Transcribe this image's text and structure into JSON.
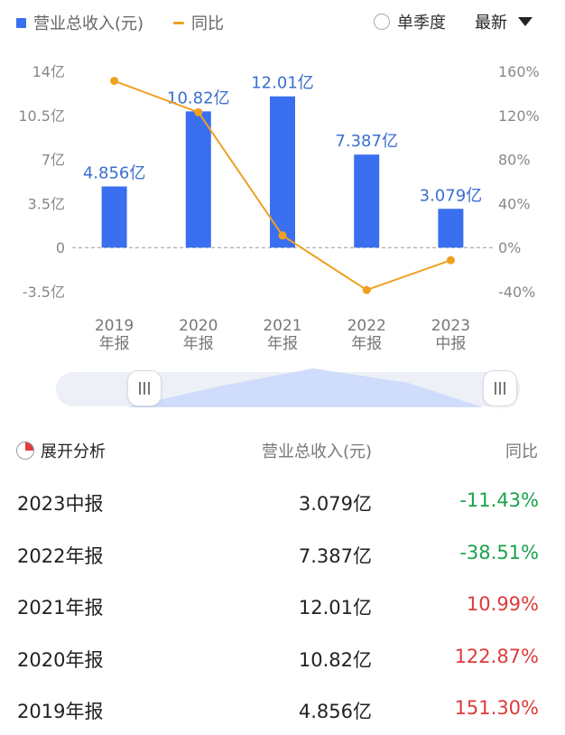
{
  "legend": {
    "revenue_label": "营业总收入(元)",
    "yoy_label": "同比"
  },
  "controls": {
    "quarter_label": "单季度",
    "sort_label": "最新"
  },
  "colors": {
    "bar": "#3a6ff0",
    "line": "#f0a020",
    "negative": "#1aa34a",
    "positive": "#e03a3a"
  },
  "chart_data": {
    "type": "bar",
    "categories": [
      [
        "2019",
        "年报"
      ],
      [
        "2020",
        "年报"
      ],
      [
        "2021",
        "年报"
      ],
      [
        "2022",
        "年报"
      ],
      [
        "2023",
        "中报"
      ]
    ],
    "series": [
      {
        "name": "营业总收入(元)",
        "type": "bar",
        "axis": "left",
        "values": [
          4.856,
          10.82,
          12.01,
          7.387,
          3.079
        ],
        "labels": [
          "4.856亿",
          "10.82亿",
          "12.01亿",
          "7.387亿",
          "3.079亿"
        ]
      },
      {
        "name": "同比",
        "type": "line",
        "axis": "right",
        "values": [
          151.3,
          122.87,
          10.99,
          -38.51,
          -11.43
        ]
      }
    ],
    "y_left": {
      "ticks": [
        14,
        10.5,
        7,
        3.5,
        0,
        -3.5
      ],
      "tick_labels": [
        "14亿",
        "10.5亿",
        "7亿",
        "3.5亿",
        "0",
        "-3.5亿"
      ],
      "ylim": [
        -3.5,
        14
      ]
    },
    "y_right": {
      "ticks": [
        160,
        120,
        80,
        40,
        0,
        -40
      ],
      "tick_labels": [
        "160%",
        "120%",
        "80%",
        "40%",
        "0%",
        "-40%"
      ],
      "ylim": [
        -40,
        160
      ]
    },
    "zero_line": "dashed"
  },
  "table": {
    "expand_label": "展开分析",
    "col_revenue": "营业总收入(元)",
    "col_yoy": "同比",
    "rows": [
      {
        "period": "2023中报",
        "revenue": "3.079亿",
        "yoy": "-11.43%",
        "sign": "neg"
      },
      {
        "period": "2022年报",
        "revenue": "7.387亿",
        "yoy": "-38.51%",
        "sign": "neg"
      },
      {
        "period": "2021年报",
        "revenue": "12.01亿",
        "yoy": "10.99%",
        "sign": "pos"
      },
      {
        "period": "2020年报",
        "revenue": "10.82亿",
        "yoy": "122.87%",
        "sign": "pos"
      },
      {
        "period": "2019年报",
        "revenue": "4.856亿",
        "yoy": "151.30%",
        "sign": "pos"
      }
    ]
  }
}
